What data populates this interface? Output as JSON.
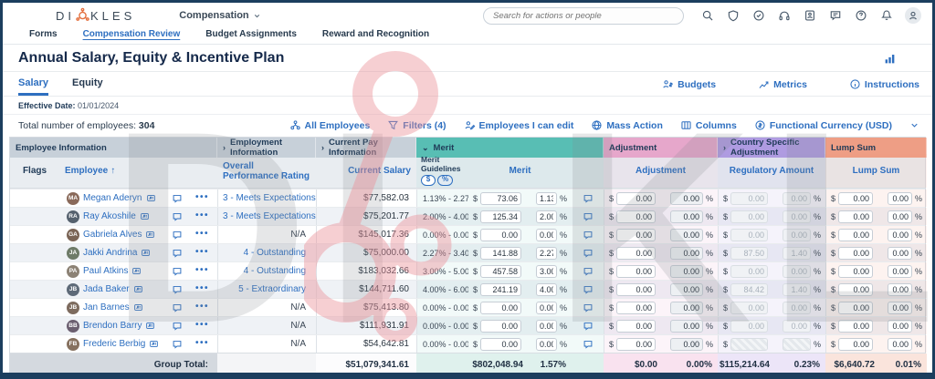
{
  "brand": {
    "prefix": "DI",
    "suffix": "KLES"
  },
  "top_nav": {
    "module": "Compensation",
    "search_placeholder": "Search for actions or people",
    "icons": [
      "search",
      "shield",
      "clock-check",
      "headset",
      "directory",
      "chat",
      "help",
      "bell",
      "avatar"
    ]
  },
  "tabs": {
    "items": [
      "Forms",
      "Compensation Review",
      "Budget Assignments",
      "Reward and Recognition"
    ],
    "active": "Compensation Review"
  },
  "page": {
    "title": "Annual Salary, Equity & Incentive Plan"
  },
  "subtabs": {
    "items": [
      "Salary",
      "Equity"
    ],
    "active": "Salary"
  },
  "actions": [
    {
      "label": "Budgets",
      "icon": "budgets"
    },
    {
      "label": "Metrics",
      "icon": "metrics"
    },
    {
      "label": "Instructions",
      "icon": "info"
    }
  ],
  "effective": {
    "label": "Effective Date:",
    "value": "01/01/2024"
  },
  "count": {
    "label": "Total number of employees:",
    "value": "304"
  },
  "toolbar": [
    {
      "label": "All Employees",
      "icon": "org"
    },
    {
      "label": "Filters (4)",
      "icon": "funnel"
    },
    {
      "label": "Employees I can edit",
      "icon": "person-edit"
    },
    {
      "label": "Mass Action",
      "icon": "globe"
    },
    {
      "label": "Columns",
      "icon": "columns"
    },
    {
      "label": "Functional Currency (USD)",
      "icon": "currency"
    }
  ],
  "colors": {
    "accent_blue": "#2e6fc0",
    "navy": "#1f3a57",
    "group_gray": "#c7d0d9",
    "merit_teal": "#58beb4",
    "adjustment_pink": "#e6a7cb",
    "country_purple": "#af9be1",
    "lump_salmon": "#ee9e85",
    "logo_orange": "#e4703f",
    "watermark_pink": "#ec8e96"
  },
  "table": {
    "groups": [
      {
        "label": "Employee Information",
        "cols": 2,
        "color": "#c7d0d9",
        "chevron": ""
      },
      {
        "label": "Employment Information",
        "cols": 1,
        "color": "#c7d0d9",
        "chevron": "right"
      },
      {
        "label": "Current Pay Information",
        "cols": 1,
        "color": "#c7d0d9",
        "chevron": "right"
      },
      {
        "label": "Merit",
        "cols": 4,
        "color": "#58beb4",
        "chevron": "down"
      },
      {
        "label": "Adjustment",
        "cols": 2,
        "color": "#e6a7cb",
        "chevron": ""
      },
      {
        "label": "Country Specific Adjustment",
        "cols": 2,
        "color": "#af9be1",
        "chevron": "right"
      },
      {
        "label": "Lump Sum",
        "cols": 2,
        "color": "#ee9e85",
        "chevron": ""
      }
    ],
    "columns": {
      "flags": "Flags",
      "employee": "Employee",
      "sort": "↑",
      "rating": "Overall Performance Rating",
      "salary": "Current Salary",
      "guidelines": "Merit Guidelines",
      "toggle_dollar": "$",
      "toggle_percent": "%",
      "merit": "Merit",
      "adjustment": "Adjustment",
      "regulatory": "Regulatory Amount",
      "lump": "Lump Sum",
      "unit_dollar": "$",
      "unit_percent": "%"
    },
    "rows": [
      {
        "name": "Megan Aderyn",
        "initials": "MA",
        "avatar_color": "#8a6a5a",
        "rating": "3 - Meets Expectations",
        "salary": "$77,582.03",
        "guideline": "1.13% - 2.27%",
        "merit_amt": "73.06",
        "merit_pct": "1.13",
        "adj_amt": "0.00",
        "adj_pct": "0.00",
        "reg_amt": "0.00",
        "reg_pct": "0.00",
        "reg_state": "disabled",
        "lump_amt": "0.00",
        "lump_pct": "0.00"
      },
      {
        "name": "Ray Akoshile",
        "initials": "RA",
        "avatar_color": "#55616e",
        "rating": "3 - Meets Expectations",
        "salary": "$75,201.77",
        "guideline": "2.00% - 4.00%",
        "merit_amt": "125.34",
        "merit_pct": "2.00",
        "adj_amt": "0.00",
        "adj_pct": "0.00",
        "reg_amt": "0.00",
        "reg_pct": "0.00",
        "reg_state": "disabled",
        "lump_amt": "0.00",
        "lump_pct": "0.00"
      },
      {
        "name": "Gabriela Alves",
        "initials": "GA",
        "avatar_color": "#7a6455",
        "rating": "N/A",
        "salary": "$145,017.36",
        "guideline": "0.00% - 0.00%",
        "merit_amt": "0.00",
        "merit_pct": "0.00",
        "adj_amt": "0.00",
        "adj_pct": "0.00",
        "reg_amt": "0.00",
        "reg_pct": "0.00",
        "reg_state": "disabled",
        "lump_amt": "0.00",
        "lump_pct": "0.00"
      },
      {
        "name": "Jakki Andrina",
        "initials": "JA",
        "avatar_color": "#6e7b68",
        "rating": "4 - Outstanding",
        "salary": "$75,000.00",
        "guideline": "2.27% - 3.40%",
        "merit_amt": "141.88",
        "merit_pct": "2.27",
        "adj_amt": "0.00",
        "adj_pct": "0.00",
        "reg_amt": "87.50",
        "reg_pct": "1.40",
        "reg_state": "disabled",
        "lump_amt": "0.00",
        "lump_pct": "0.00"
      },
      {
        "name": "Paul Atkins",
        "initials": "PA",
        "avatar_color": "#8c8275",
        "rating": "4 - Outstanding",
        "salary": "$183,032.66",
        "guideline": "3.00% - 5.00%",
        "merit_amt": "457.58",
        "merit_pct": "3.00",
        "adj_amt": "0.00",
        "adj_pct": "0.00",
        "reg_amt": "0.00",
        "reg_pct": "0.00",
        "reg_state": "disabled",
        "lump_amt": "0.00",
        "lump_pct": "0.00"
      },
      {
        "name": "Jada Baker",
        "initials": "JB",
        "avatar_color": "#5e6a78",
        "rating": "5 - Extraordinary",
        "salary": "$144,711.60",
        "guideline": "4.00% - 6.00%",
        "merit_amt": "241.19",
        "merit_pct": "4.00",
        "adj_amt": "0.00",
        "adj_pct": "0.00",
        "reg_amt": "84.42",
        "reg_pct": "1.40",
        "reg_state": "disabled",
        "lump_amt": "0.00",
        "lump_pct": "0.00"
      },
      {
        "name": "Jan Barnes",
        "initials": "JB",
        "avatar_color": "#7d6b5e",
        "rating": "N/A",
        "salary": "$75,413.80",
        "guideline": "0.00% - 0.00%",
        "merit_amt": "0.00",
        "merit_pct": "0.00",
        "adj_amt": "0.00",
        "adj_pct": "0.00",
        "reg_amt": "0.00",
        "reg_pct": "0.00",
        "reg_state": "disabled",
        "lump_amt": "0.00",
        "lump_pct": "0.00"
      },
      {
        "name": "Brendon Barry",
        "initials": "BB",
        "avatar_color": "#6b5f70",
        "rating": "N/A",
        "salary": "$111,931.91",
        "guideline": "0.00% - 0.00%",
        "merit_amt": "0.00",
        "merit_pct": "0.00",
        "adj_amt": "0.00",
        "adj_pct": "0.00",
        "reg_amt": "0.00",
        "reg_pct": "0.00",
        "reg_state": "disabled",
        "lump_amt": "0.00",
        "lump_pct": "0.00"
      },
      {
        "name": "Frederic Berbig",
        "initials": "FB",
        "avatar_color": "#86715f",
        "rating": "N/A",
        "salary": "$54,642.81",
        "guideline": "0.00% - 0.00%",
        "merit_amt": "0.00",
        "merit_pct": "0.00",
        "adj_amt": "0.00",
        "adj_pct": "0.00",
        "reg_amt": "",
        "reg_pct": "",
        "reg_state": "hatched",
        "lump_amt": "0.00",
        "lump_pct": "0.00"
      }
    ],
    "totals": {
      "label": "Group Total:",
      "salary": "$51,079,341.61",
      "merit_amt": "$802,048.94",
      "merit_pct": "1.57%",
      "adj_amt": "$0.00",
      "adj_pct": "0.00%",
      "reg_amt": "$115,214.64",
      "reg_pct": "0.23%",
      "lump_amt": "$6,640.72",
      "lump_pct": "0.01%"
    }
  },
  "watermark": {
    "letters": [
      "D",
      "I",
      "K",
      "L",
      "E",
      "S"
    ]
  }
}
